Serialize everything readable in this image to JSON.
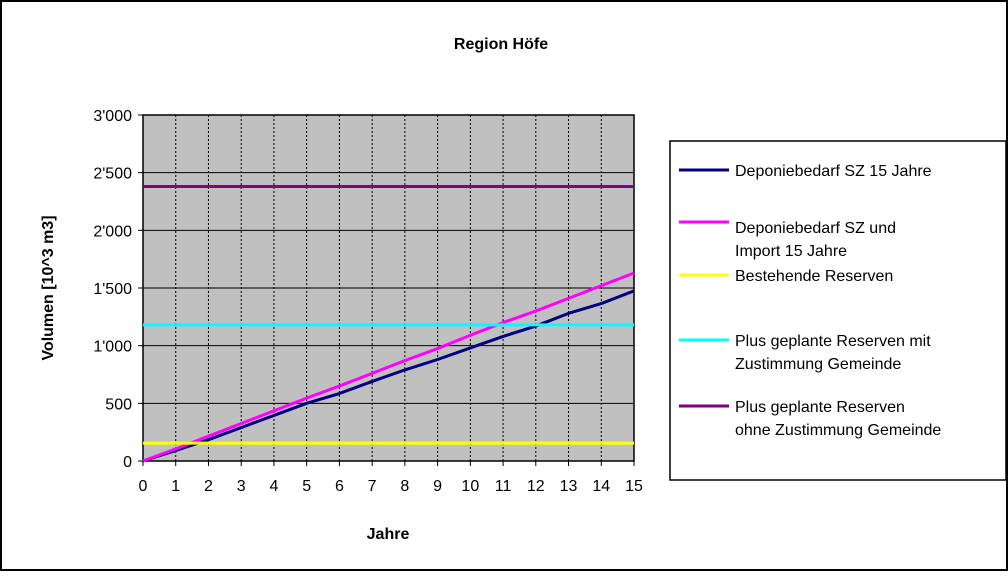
{
  "chart_data": {
    "type": "line",
    "title": "Region Höfe",
    "xlabel": "Jahre",
    "ylabel": "Volumen [10^3 m3]",
    "xlim": [
      0,
      15
    ],
    "ylim": [
      0,
      3000
    ],
    "x_ticks": [
      "0",
      "1",
      "2",
      "3",
      "4",
      "5",
      "6",
      "7",
      "8",
      "9",
      "10",
      "11",
      "12",
      "13",
      "14",
      "15"
    ],
    "y_ticks": [
      {
        "value": 0,
        "label": "0"
      },
      {
        "value": 500,
        "label": "500"
      },
      {
        "value": 1000,
        "label": "1'000"
      },
      {
        "value": 1500,
        "label": "1'500"
      },
      {
        "value": 2000,
        "label": "2'000"
      },
      {
        "value": 2500,
        "label": "2'500"
      },
      {
        "value": 3000,
        "label": "3'000"
      }
    ],
    "grid": true,
    "plot_background": "#c0c0c0",
    "legend_position": "right",
    "x": [
      0,
      1,
      2,
      3,
      4,
      5,
      6,
      7,
      8,
      9,
      10,
      11,
      12,
      13,
      14,
      15
    ],
    "series": [
      {
        "name": "Deponiebedarf SZ 15 Jahre",
        "legend_lines": [
          "Deponiebedarf SZ 15 Jahre"
        ],
        "color": "#000080",
        "values": [
          0,
          90,
          185,
          290,
          395,
          500,
          585,
          690,
          790,
          880,
          980,
          1080,
          1170,
          1280,
          1365,
          1475
        ]
      },
      {
        "name": "Deponiebedarf SZ und Import 15 Jahre",
        "legend_lines": [
          "Deponiebedarf SZ und",
          "Import 15 Jahre"
        ],
        "color": "#ff00ff",
        "values": [
          0,
          105,
          215,
          325,
          435,
          545,
          650,
          760,
          870,
          975,
          1090,
          1200,
          1300,
          1410,
          1520,
          1630
        ]
      },
      {
        "name": "Bestehende Reserven",
        "legend_lines": [
          "Bestehende Reserven"
        ],
        "color": "#ffff00",
        "values": [
          155,
          155,
          155,
          155,
          155,
          155,
          155,
          155,
          155,
          155,
          155,
          155,
          155,
          155,
          155,
          155
        ]
      },
      {
        "name": "Plus geplante Reserven mit Zustimmung Gemeinde",
        "legend_lines": [
          "Plus geplante Reserven mit",
          "Zustimmung Gemeinde"
        ],
        "color": "#00ffff",
        "values": [
          1180,
          1180,
          1180,
          1180,
          1180,
          1180,
          1180,
          1180,
          1180,
          1180,
          1180,
          1180,
          1180,
          1180,
          1180,
          1180
        ]
      },
      {
        "name": "Plus geplante Reserven ohne Zustimmung Gemeinde",
        "legend_lines": [
          "Plus geplante Reserven",
          "ohne Zustimmung Gemeinde"
        ],
        "color": "#800080",
        "values": [
          2380,
          2380,
          2380,
          2380,
          2380,
          2380,
          2380,
          2380,
          2380,
          2380,
          2380,
          2380,
          2380,
          2380,
          2380,
          2380
        ]
      }
    ]
  }
}
